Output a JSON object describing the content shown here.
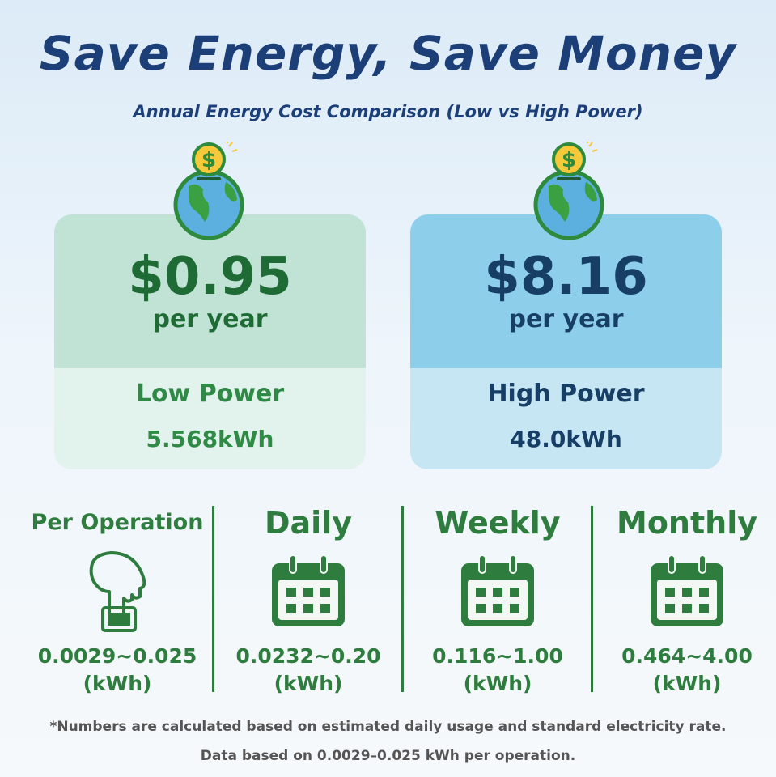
{
  "title": "Save Energy, Save Money",
  "subtitle": "Annual Energy Cost Comparison (Low vs High Power)",
  "cards": [
    {
      "price": "$0.95",
      "per": "per year",
      "label": "Low Power",
      "kwh": "5.568kWh",
      "top_color": "#c1e3d5",
      "bottom_color": "#e2f2ec",
      "text_color": "#1f6b35",
      "icon": "globe-coin-icon"
    },
    {
      "price": "$8.16",
      "per": "per year",
      "label": "High Power",
      "kwh": "48.0kWh",
      "top_color": "#8dcfeb",
      "bottom_color": "#c6e6f3",
      "text_color": "#173f66",
      "icon": "globe-coin-icon"
    }
  ],
  "periods": [
    {
      "label": "Per Operation",
      "value": "0.0029~0.025",
      "unit": "(kWh)",
      "icon": "hand-press-button-icon"
    },
    {
      "label": "Daily",
      "value": "0.0232~0.20",
      "unit": "(kWh)",
      "icon": "calendar-icon"
    },
    {
      "label": "Weekly",
      "value": "0.116~1.00",
      "unit": "(kWh)",
      "icon": "calendar-icon"
    },
    {
      "label": "Monthly",
      "value": "0.464~4.00",
      "unit": "(kWh)",
      "icon": "calendar-icon"
    }
  ],
  "footnote": {
    "line1": "*Numbers are calculated based on estimated daily usage and standard electricity rate.",
    "line2": "Data based on 0.0029–0.025 kWh per operation."
  },
  "colors": {
    "title": "#1d3f78",
    "accent_green": "#2e7d3f"
  }
}
